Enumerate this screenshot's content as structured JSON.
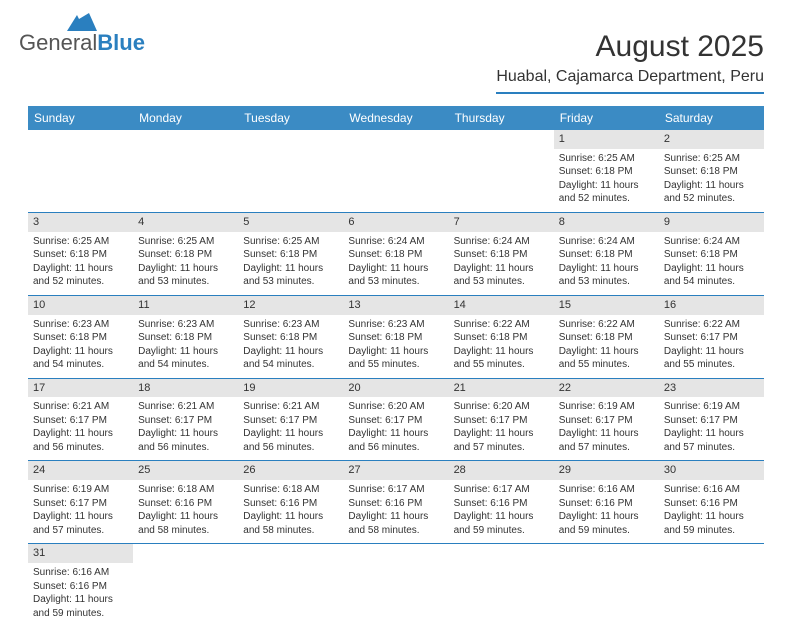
{
  "logo": {
    "general": "General",
    "blue": "Blue"
  },
  "title": "August 2025",
  "location": "Huabal, Cajamarca Department, Peru",
  "colors": {
    "header_bg": "#3b8bc4",
    "header_text": "#ffffff",
    "daynum_bg": "#e5e5e5",
    "border": "#2a7fbf",
    "text": "#333333",
    "logo_blue": "#2a7fbf"
  },
  "fonts": {
    "title_size": 30,
    "location_size": 16,
    "header_size": 12,
    "cell_size": 10,
    "daynum_size": 11
  },
  "day_headers": [
    "Sunday",
    "Monday",
    "Tuesday",
    "Wednesday",
    "Thursday",
    "Friday",
    "Saturday"
  ],
  "weeks": [
    {
      "nums": [
        "",
        "",
        "",
        "",
        "",
        "1",
        "2"
      ],
      "cells": [
        null,
        null,
        null,
        null,
        null,
        {
          "sunrise": "Sunrise: 6:25 AM",
          "sunset": "Sunset: 6:18 PM",
          "daylight": "Daylight: 11 hours and 52 minutes."
        },
        {
          "sunrise": "Sunrise: 6:25 AM",
          "sunset": "Sunset: 6:18 PM",
          "daylight": "Daylight: 11 hours and 52 minutes."
        }
      ]
    },
    {
      "nums": [
        "3",
        "4",
        "5",
        "6",
        "7",
        "8",
        "9"
      ],
      "cells": [
        {
          "sunrise": "Sunrise: 6:25 AM",
          "sunset": "Sunset: 6:18 PM",
          "daylight": "Daylight: 11 hours and 52 minutes."
        },
        {
          "sunrise": "Sunrise: 6:25 AM",
          "sunset": "Sunset: 6:18 PM",
          "daylight": "Daylight: 11 hours and 53 minutes."
        },
        {
          "sunrise": "Sunrise: 6:25 AM",
          "sunset": "Sunset: 6:18 PM",
          "daylight": "Daylight: 11 hours and 53 minutes."
        },
        {
          "sunrise": "Sunrise: 6:24 AM",
          "sunset": "Sunset: 6:18 PM",
          "daylight": "Daylight: 11 hours and 53 minutes."
        },
        {
          "sunrise": "Sunrise: 6:24 AM",
          "sunset": "Sunset: 6:18 PM",
          "daylight": "Daylight: 11 hours and 53 minutes."
        },
        {
          "sunrise": "Sunrise: 6:24 AM",
          "sunset": "Sunset: 6:18 PM",
          "daylight": "Daylight: 11 hours and 53 minutes."
        },
        {
          "sunrise": "Sunrise: 6:24 AM",
          "sunset": "Sunset: 6:18 PM",
          "daylight": "Daylight: 11 hours and 54 minutes."
        }
      ]
    },
    {
      "nums": [
        "10",
        "11",
        "12",
        "13",
        "14",
        "15",
        "16"
      ],
      "cells": [
        {
          "sunrise": "Sunrise: 6:23 AM",
          "sunset": "Sunset: 6:18 PM",
          "daylight": "Daylight: 11 hours and 54 minutes."
        },
        {
          "sunrise": "Sunrise: 6:23 AM",
          "sunset": "Sunset: 6:18 PM",
          "daylight": "Daylight: 11 hours and 54 minutes."
        },
        {
          "sunrise": "Sunrise: 6:23 AM",
          "sunset": "Sunset: 6:18 PM",
          "daylight": "Daylight: 11 hours and 54 minutes."
        },
        {
          "sunrise": "Sunrise: 6:23 AM",
          "sunset": "Sunset: 6:18 PM",
          "daylight": "Daylight: 11 hours and 55 minutes."
        },
        {
          "sunrise": "Sunrise: 6:22 AM",
          "sunset": "Sunset: 6:18 PM",
          "daylight": "Daylight: 11 hours and 55 minutes."
        },
        {
          "sunrise": "Sunrise: 6:22 AM",
          "sunset": "Sunset: 6:18 PM",
          "daylight": "Daylight: 11 hours and 55 minutes."
        },
        {
          "sunrise": "Sunrise: 6:22 AM",
          "sunset": "Sunset: 6:17 PM",
          "daylight": "Daylight: 11 hours and 55 minutes."
        }
      ]
    },
    {
      "nums": [
        "17",
        "18",
        "19",
        "20",
        "21",
        "22",
        "23"
      ],
      "cells": [
        {
          "sunrise": "Sunrise: 6:21 AM",
          "sunset": "Sunset: 6:17 PM",
          "daylight": "Daylight: 11 hours and 56 minutes."
        },
        {
          "sunrise": "Sunrise: 6:21 AM",
          "sunset": "Sunset: 6:17 PM",
          "daylight": "Daylight: 11 hours and 56 minutes."
        },
        {
          "sunrise": "Sunrise: 6:21 AM",
          "sunset": "Sunset: 6:17 PM",
          "daylight": "Daylight: 11 hours and 56 minutes."
        },
        {
          "sunrise": "Sunrise: 6:20 AM",
          "sunset": "Sunset: 6:17 PM",
          "daylight": "Daylight: 11 hours and 56 minutes."
        },
        {
          "sunrise": "Sunrise: 6:20 AM",
          "sunset": "Sunset: 6:17 PM",
          "daylight": "Daylight: 11 hours and 57 minutes."
        },
        {
          "sunrise": "Sunrise: 6:19 AM",
          "sunset": "Sunset: 6:17 PM",
          "daylight": "Daylight: 11 hours and 57 minutes."
        },
        {
          "sunrise": "Sunrise: 6:19 AM",
          "sunset": "Sunset: 6:17 PM",
          "daylight": "Daylight: 11 hours and 57 minutes."
        }
      ]
    },
    {
      "nums": [
        "24",
        "25",
        "26",
        "27",
        "28",
        "29",
        "30"
      ],
      "cells": [
        {
          "sunrise": "Sunrise: 6:19 AM",
          "sunset": "Sunset: 6:17 PM",
          "daylight": "Daylight: 11 hours and 57 minutes."
        },
        {
          "sunrise": "Sunrise: 6:18 AM",
          "sunset": "Sunset: 6:16 PM",
          "daylight": "Daylight: 11 hours and 58 minutes."
        },
        {
          "sunrise": "Sunrise: 6:18 AM",
          "sunset": "Sunset: 6:16 PM",
          "daylight": "Daylight: 11 hours and 58 minutes."
        },
        {
          "sunrise": "Sunrise: 6:17 AM",
          "sunset": "Sunset: 6:16 PM",
          "daylight": "Daylight: 11 hours and 58 minutes."
        },
        {
          "sunrise": "Sunrise: 6:17 AM",
          "sunset": "Sunset: 6:16 PM",
          "daylight": "Daylight: 11 hours and 59 minutes."
        },
        {
          "sunrise": "Sunrise: 6:16 AM",
          "sunset": "Sunset: 6:16 PM",
          "daylight": "Daylight: 11 hours and 59 minutes."
        },
        {
          "sunrise": "Sunrise: 6:16 AM",
          "sunset": "Sunset: 6:16 PM",
          "daylight": "Daylight: 11 hours and 59 minutes."
        }
      ]
    },
    {
      "nums": [
        "31",
        "",
        "",
        "",
        "",
        "",
        ""
      ],
      "cells": [
        {
          "sunrise": "Sunrise: 6:16 AM",
          "sunset": "Sunset: 6:16 PM",
          "daylight": "Daylight: 11 hours and 59 minutes."
        },
        null,
        null,
        null,
        null,
        null,
        null
      ]
    }
  ]
}
